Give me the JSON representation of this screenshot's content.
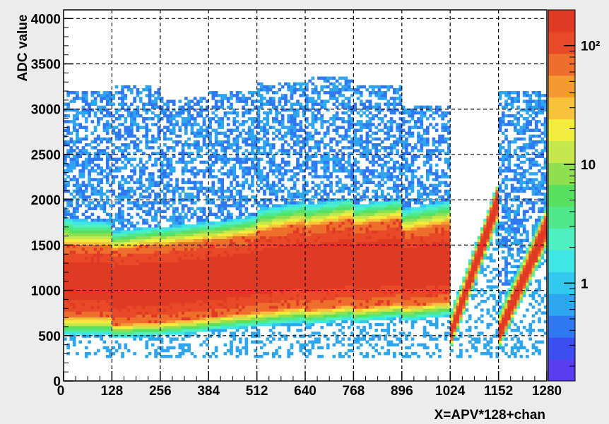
{
  "chart_data": {
    "type": "heatmap",
    "xlabel": "X=APV*128+chan",
    "ylabel": "ADC value",
    "xlim": [
      0,
      1280
    ],
    "ylim": [
      0,
      4096
    ],
    "x_ticks": [
      "0",
      "128",
      "256",
      "384",
      "512",
      "640",
      "768",
      "896",
      "1024",
      "1152",
      "1280"
    ],
    "y_ticks": [
      "0",
      "500",
      "1000",
      "1500",
      "2000",
      "2500",
      "3000",
      "3500",
      "4000"
    ],
    "grid": true,
    "colorbar": {
      "scale": "log",
      "labels": [
        "1",
        "10",
        "10²"
      ],
      "colors": [
        "#5a3df0",
        "#3a4ef2",
        "#2f78f2",
        "#2ea6ef",
        "#33c8ef",
        "#3fe6e6",
        "#4ef0c0",
        "#4fe88a",
        "#58e060",
        "#8fe050",
        "#c7e84c",
        "#f2ec3c",
        "#f8c23a",
        "#f59a33",
        "#ee6e2c",
        "#e84a28",
        "#e03a25"
      ]
    },
    "bands": [
      {
        "x": [
          0,
          128
        ],
        "core_low": [
          700,
          700
        ],
        "core_high": [
          1500,
          1500
        ],
        "lower_edge": [
          500,
          500
        ],
        "upper_edge": [
          1800,
          1750
        ],
        "sparse_max": 3200
      },
      {
        "x": [
          128,
          256
        ],
        "core_low": [
          620,
          650
        ],
        "core_high": [
          1450,
          1520
        ],
        "lower_edge": [
          480,
          500
        ],
        "upper_edge": [
          1650,
          1720
        ],
        "sparse_max": 3250
      },
      {
        "x": [
          256,
          384
        ],
        "core_low": [
          650,
          700
        ],
        "core_high": [
          1500,
          1560
        ],
        "lower_edge": [
          500,
          540
        ],
        "upper_edge": [
          1700,
          1760
        ],
        "sparse_max": 3150
      },
      {
        "x": [
          384,
          512
        ],
        "core_low": [
          700,
          760
        ],
        "core_high": [
          1550,
          1620
        ],
        "lower_edge": [
          560,
          600
        ],
        "upper_edge": [
          1750,
          1830
        ],
        "sparse_max": 3200
      },
      {
        "x": [
          512,
          640
        ],
        "core_low": [
          760,
          820
        ],
        "core_high": [
          1650,
          1750
        ],
        "lower_edge": [
          600,
          650
        ],
        "upper_edge": [
          1900,
          1980
        ],
        "sparse_max": 3300
      },
      {
        "x": [
          640,
          768
        ],
        "core_low": [
          780,
          840
        ],
        "core_high": [
          1700,
          1800
        ],
        "lower_edge": [
          620,
          680
        ],
        "upper_edge": [
          1950,
          2030
        ],
        "sparse_max": 3350
      },
      {
        "x": [
          768,
          896
        ],
        "core_low": [
          800,
          860
        ],
        "core_high": [
          1720,
          1800
        ],
        "lower_edge": [
          640,
          700
        ],
        "upper_edge": [
          1950,
          2020
        ],
        "sparse_max": 3250
      },
      {
        "x": [
          896,
          1024
        ],
        "core_low": [
          820,
          880
        ],
        "core_high": [
          1650,
          1750
        ],
        "lower_edge": [
          660,
          720
        ],
        "upper_edge": [
          1900,
          2000
        ],
        "sparse_max": 3050
      },
      {
        "x": [
          1024,
          1152
        ],
        "core_low": [
          450,
          1900
        ],
        "core_high": [
          650,
          2200
        ],
        "lower_edge": [
          380,
          1800
        ],
        "upper_edge": [
          800,
          2250
        ],
        "sparse_max": 0,
        "diagonal": true
      },
      {
        "x": [
          1152,
          1280
        ],
        "core_low": [
          450,
          1600
        ],
        "core_high": [
          650,
          1900
        ],
        "lower_edge": [
          380,
          1500
        ],
        "upper_edge": [
          800,
          1980
        ],
        "sparse_max": 3200,
        "diagonal": true
      }
    ]
  }
}
